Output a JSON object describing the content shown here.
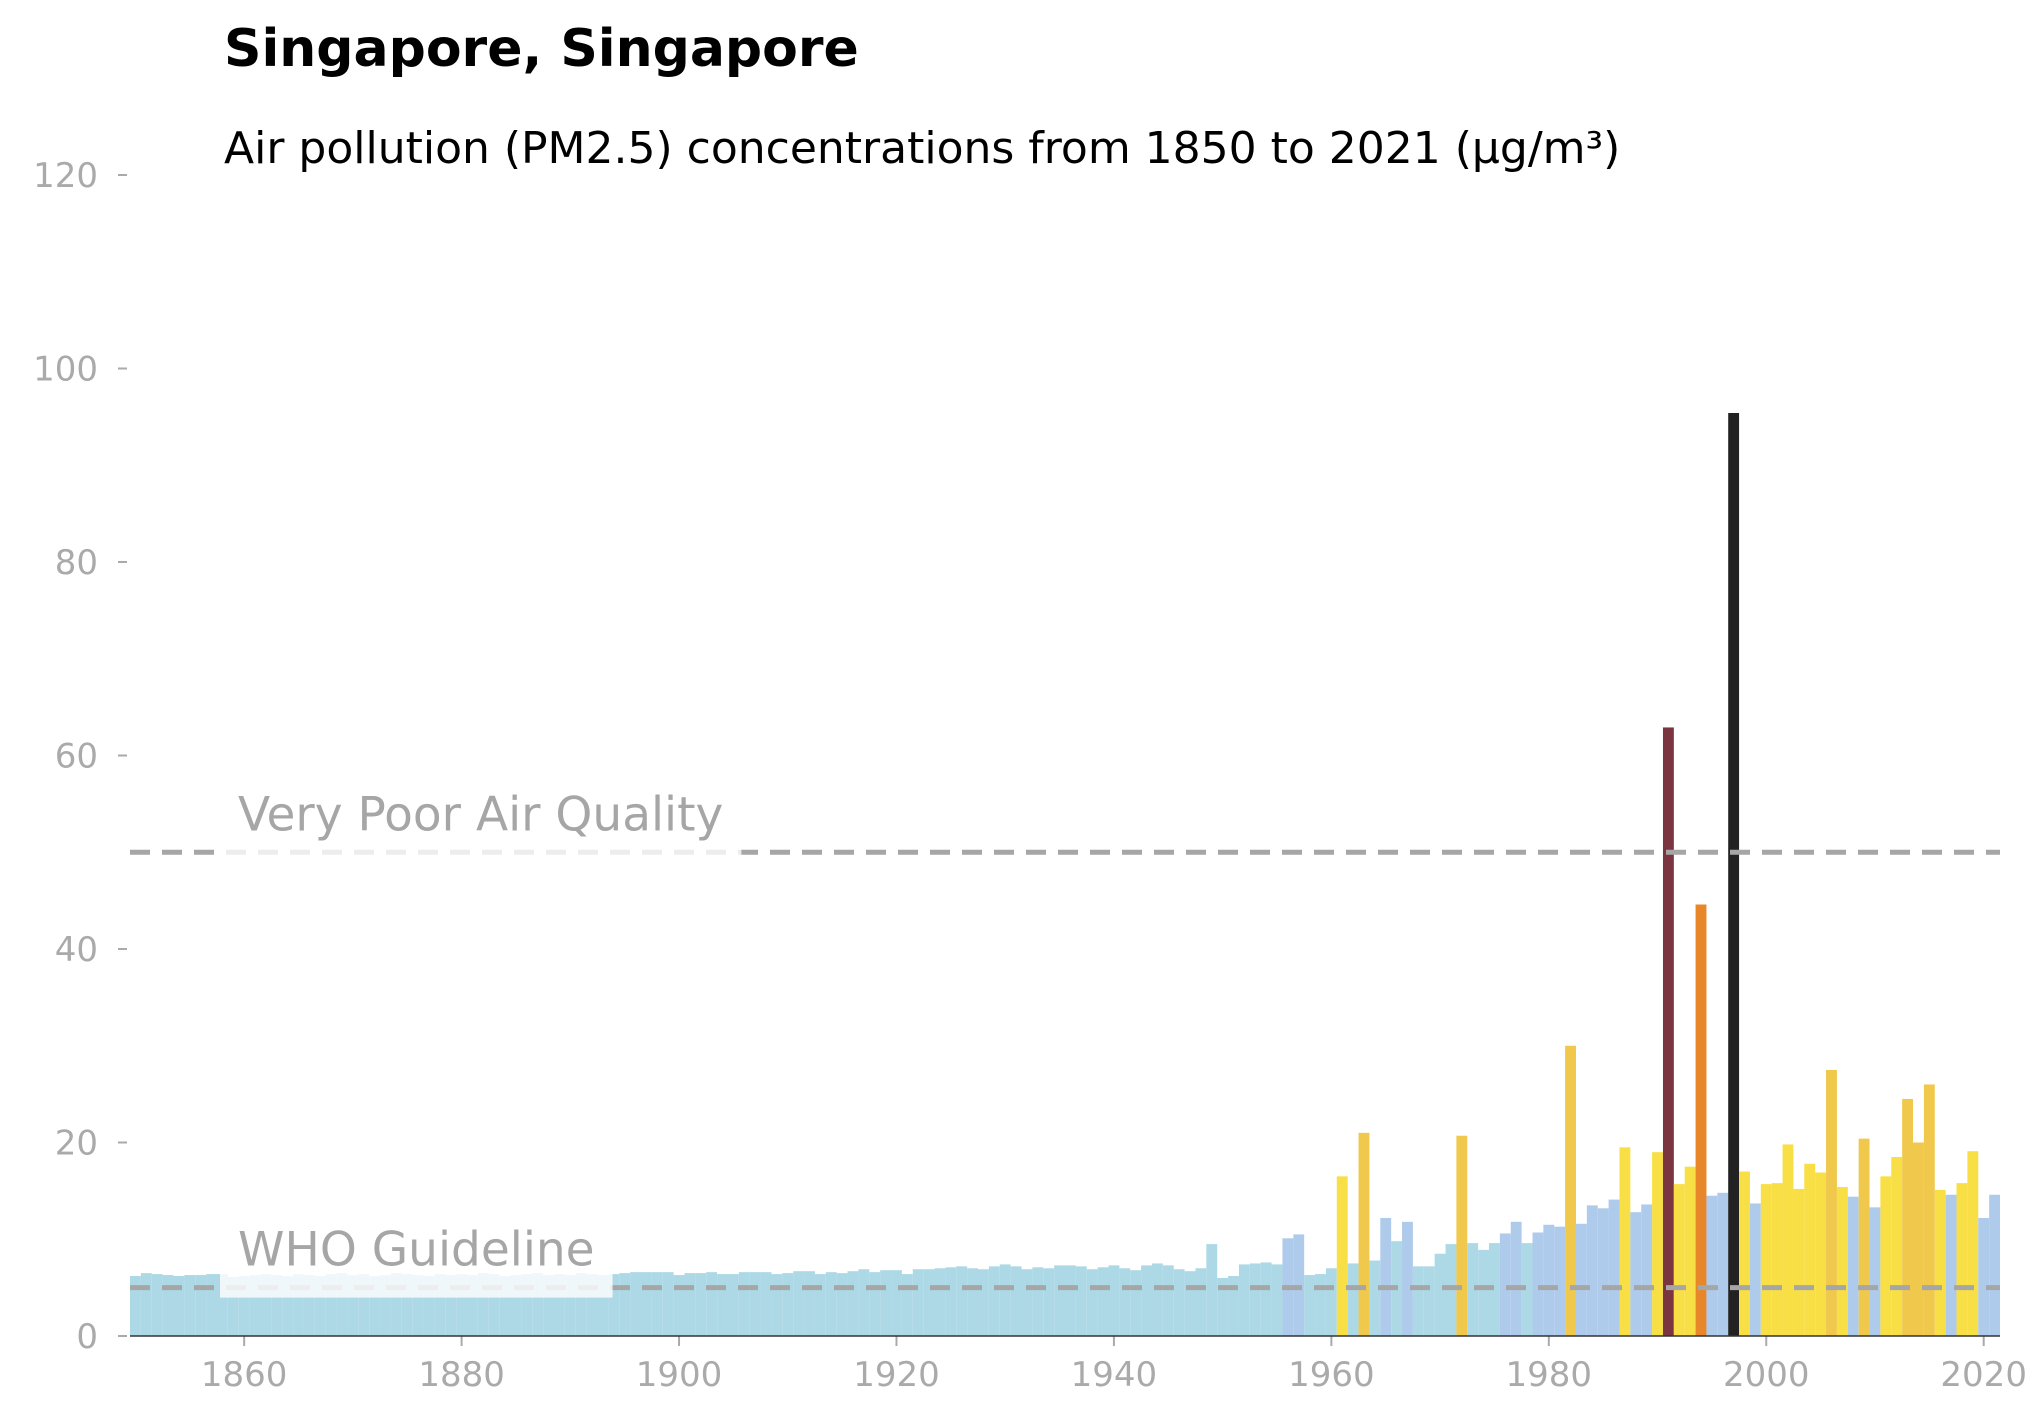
{
  "chart_data": {
    "type": "bar",
    "title": "Singapore, Singapore",
    "subtitle": "Air pollution (PM2.5) concentrations from 1850 to 2021 (µg/m³)",
    "x": [
      1850,
      1851,
      1852,
      1853,
      1854,
      1855,
      1856,
      1857,
      1858,
      1859,
      1860,
      1861,
      1862,
      1863,
      1864,
      1865,
      1866,
      1867,
      1868,
      1869,
      1870,
      1871,
      1872,
      1873,
      1874,
      1875,
      1876,
      1877,
      1878,
      1879,
      1880,
      1881,
      1882,
      1883,
      1884,
      1885,
      1886,
      1887,
      1888,
      1889,
      1890,
      1891,
      1892,
      1893,
      1894,
      1895,
      1896,
      1897,
      1898,
      1899,
      1900,
      1901,
      1902,
      1903,
      1904,
      1905,
      1906,
      1907,
      1908,
      1909,
      1910,
      1911,
      1912,
      1913,
      1914,
      1915,
      1916,
      1917,
      1918,
      1919,
      1920,
      1921,
      1922,
      1923,
      1924,
      1925,
      1926,
      1927,
      1928,
      1929,
      1930,
      1931,
      1932,
      1933,
      1934,
      1935,
      1936,
      1937,
      1938,
      1939,
      1940,
      1941,
      1942,
      1943,
      1944,
      1945,
      1946,
      1947,
      1948,
      1949,
      1950,
      1951,
      1952,
      1953,
      1954,
      1955,
      1956,
      1957,
      1958,
      1959,
      1960,
      1961,
      1962,
      1963,
      1964,
      1965,
      1966,
      1967,
      1968,
      1969,
      1970,
      1971,
      1972,
      1973,
      1974,
      1975,
      1976,
      1977,
      1978,
      1979,
      1980,
      1981,
      1982,
      1983,
      1984,
      1985,
      1986,
      1987,
      1988,
      1989,
      1990,
      1991,
      1992,
      1993,
      1994,
      1995,
      1996,
      1997,
      1998,
      1999,
      2000,
      2001,
      2002,
      2003,
      2004,
      2005,
      2006,
      2007,
      2008,
      2009,
      2010,
      2011,
      2012,
      2013,
      2014,
      2015,
      2016,
      2017,
      2018,
      2019,
      2020,
      2021
    ],
    "values": [
      6.2,
      6.5,
      6.4,
      6.3,
      6.2,
      6.3,
      6.3,
      6.4,
      6.4,
      6.1,
      6.2,
      6.3,
      6.4,
      6.3,
      6.2,
      6.4,
      6.3,
      6.2,
      6.4,
      6.5,
      6.3,
      6.4,
      6.2,
      6.3,
      6.5,
      6.4,
      6.3,
      6.2,
      6.4,
      6.3,
      6.4,
      6.3,
      6.5,
      6.4,
      6.2,
      6.3,
      6.4,
      6.5,
      6.3,
      6.4,
      6.3,
      6.5,
      6.4,
      6.3,
      6.4,
      6.5,
      6.6,
      6.6,
      6.6,
      6.6,
      6.3,
      6.5,
      6.5,
      6.6,
      6.4,
      6.4,
      6.6,
      6.6,
      6.6,
      6.4,
      6.5,
      6.7,
      6.7,
      6.4,
      6.6,
      6.5,
      6.7,
      6.9,
      6.6,
      6.8,
      6.8,
      6.4,
      6.9,
      6.9,
      7.0,
      7.1,
      7.2,
      7.0,
      6.9,
      7.2,
      7.4,
      7.2,
      6.9,
      7.1,
      7.0,
      7.3,
      7.3,
      7.2,
      6.9,
      7.1,
      7.3,
      7.0,
      6.8,
      7.3,
      7.5,
      7.3,
      6.9,
      6.7,
      7.0,
      9.5,
      6.0,
      6.2,
      7.4,
      7.5,
      7.6,
      7.4,
      10.1,
      10.5,
      6.3,
      6.4,
      7.0,
      16.5,
      7.5,
      21.0,
      7.8,
      12.2,
      9.8,
      11.8,
      7.2,
      7.2,
      8.5,
      9.5,
      20.7,
      9.6,
      8.9,
      9.6,
      10.6,
      11.8,
      9.6,
      10.7,
      11.5,
      11.3,
      30.0,
      11.6,
      13.5,
      13.2,
      14.1,
      19.5,
      12.8,
      13.6,
      19.0,
      62.9,
      15.7,
      17.5,
      44.6,
      14.5,
      14.8,
      95.4,
      17.0,
      13.7,
      15.7,
      15.8,
      19.8,
      15.2,
      17.8,
      16.9,
      27.5,
      15.4,
      14.4,
      20.4,
      13.3,
      16.5,
      18.5,
      24.5,
      20.0,
      26.0,
      15.1,
      14.6,
      15.8,
      19.1,
      12.2,
      14.6
    ],
    "color_scale": [
      {
        "below": 10,
        "color": "#add8e6"
      },
      {
        "below": 15,
        "color": "#afcbeb"
      },
      {
        "below": 20,
        "color": "#f7df45"
      },
      {
        "below": 35,
        "color": "#f0c84c"
      },
      {
        "below": 55,
        "color": "#e8862a"
      },
      {
        "below": 75,
        "color": "#7b3540"
      },
      {
        "color": "#222222"
      }
    ],
    "reference_lines": [
      {
        "value": 50,
        "label": "Very Poor Air Quality"
      },
      {
        "value": 5,
        "label": "WHO Guideline"
      }
    ],
    "xlim": [
      1849.5,
      2021.5
    ],
    "xticks": [
      1860,
      1880,
      1900,
      1920,
      1940,
      1960,
      1980,
      2000,
      2020
    ],
    "ylim": [
      0,
      120
    ],
    "yticks": [
      0,
      20,
      40,
      60,
      80,
      100,
      120
    ]
  }
}
